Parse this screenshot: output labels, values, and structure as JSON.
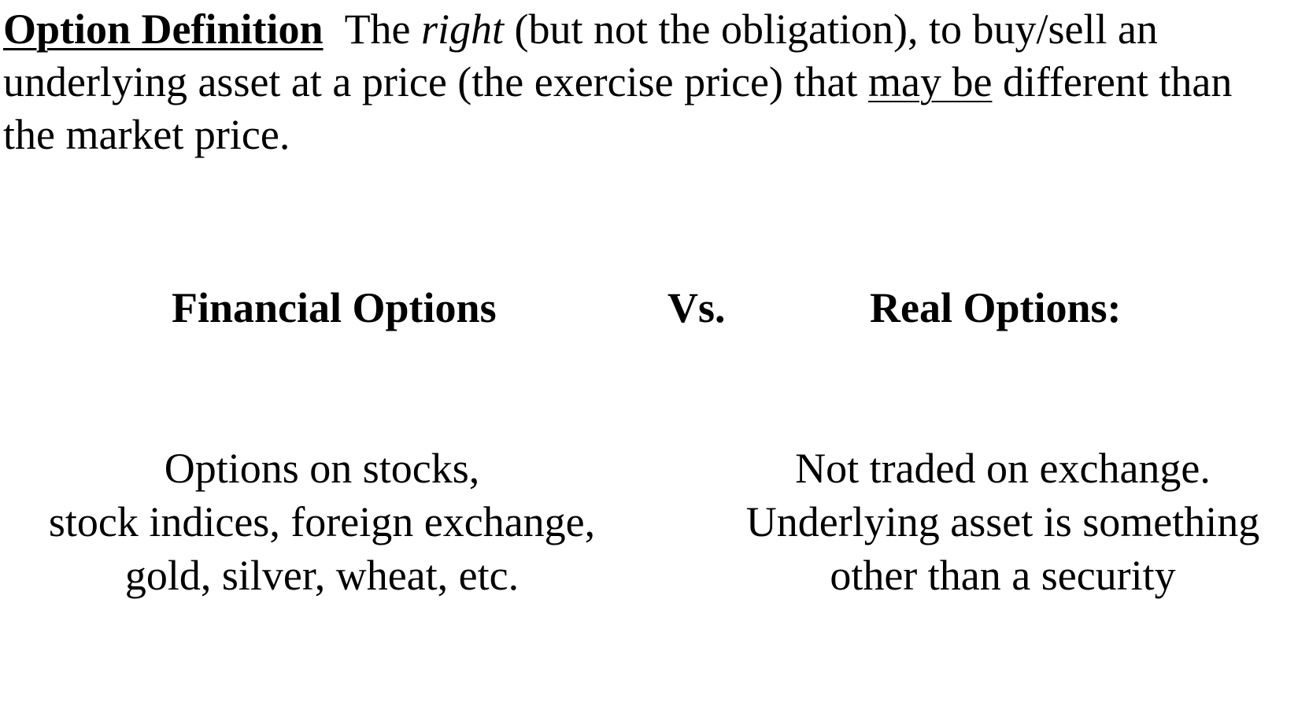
{
  "definition": {
    "label": "Option Definition",
    "text_1": "The ",
    "emphasis": "right",
    "text_2": " (but not the obligation), to buy/sell an underlying asset at a price (the exercise price) that ",
    "underlined": "may be",
    "text_3": " different than the market price."
  },
  "comparison": {
    "left_heading": "Financial Options",
    "vs_label": "Vs.",
    "right_heading": "Real Options:",
    "left_lines": [
      "Options on stocks,",
      "stock indices, foreign exchange,",
      "gold, silver, wheat, etc."
    ],
    "right_lines": [
      "Not traded on exchange.",
      "Underlying asset is something",
      "other than a security"
    ]
  }
}
